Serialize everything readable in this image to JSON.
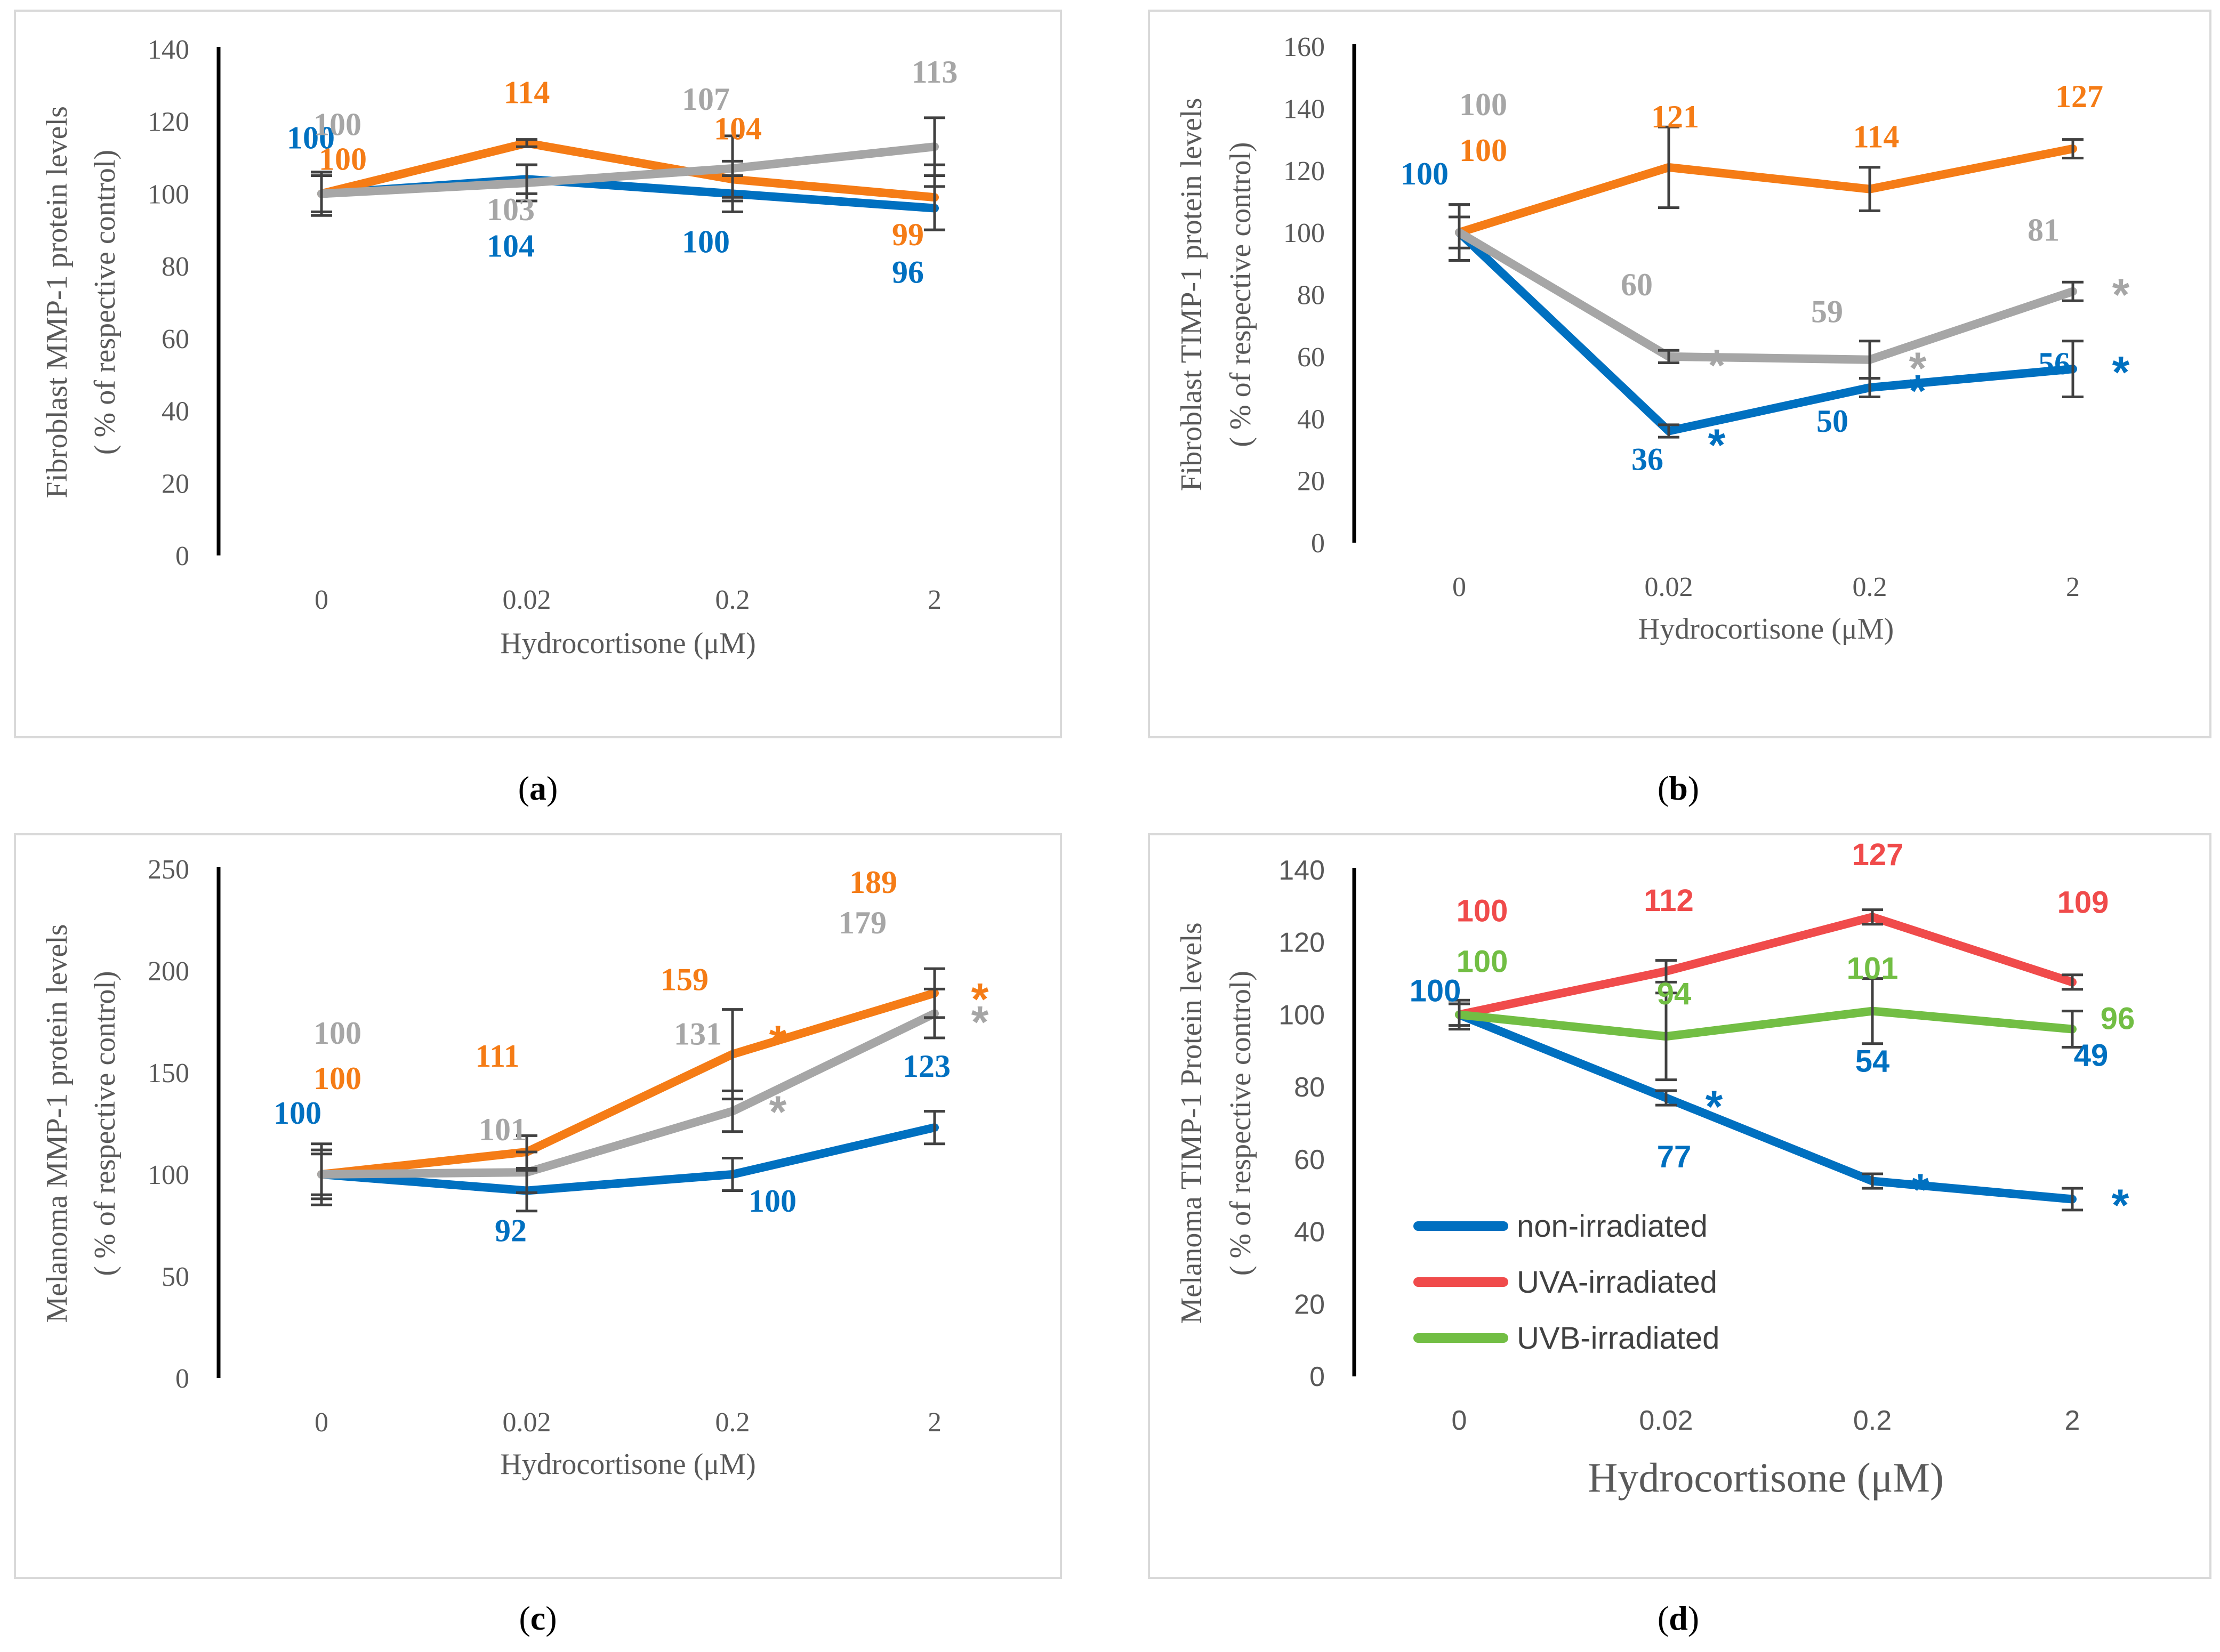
{
  "colors": {
    "blue": "#0070C0",
    "orange": "#F57C16",
    "gray": "#A6A6A6",
    "red": "#F04B4B",
    "green": "#72BE44"
  },
  "chart_data": [
    {
      "type": "line",
      "caption_letter": "a",
      "ylabel_1": "Fibroblast MMP-1 protein levels",
      "ylabel_2": "( % of respective control)",
      "xlabel": "Hydrocortisone (μM)",
      "categories": [
        "0",
        "0.02",
        "0.2",
        "2"
      ],
      "ylim": [
        0,
        140
      ],
      "yticks": [
        0,
        20,
        40,
        60,
        80,
        100,
        120,
        140
      ],
      "series": [
        {
          "name": "non-irradiated",
          "color": "#0070C0",
          "values": [
            100,
            104,
            100,
            96
          ],
          "errors": [
            6,
            4,
            5,
            6
          ],
          "labels": [
            "100",
            "104",
            "100",
            "96"
          ],
          "stars": [
            false,
            false,
            false,
            false
          ]
        },
        {
          "name": "UVA-irradiated",
          "color": "#F57C16",
          "values": [
            100,
            114,
            104,
            99
          ],
          "errors": [
            5,
            1,
            5,
            9
          ],
          "labels": [
            "100",
            "114",
            "104",
            "99"
          ],
          "stars": [
            false,
            false,
            false,
            false
          ]
        },
        {
          "name": "UVB-irradiated",
          "color": "#A6A6A6",
          "values": [
            100,
            103,
            107,
            113
          ],
          "errors": [
            6,
            5,
            9,
            8
          ],
          "labels": [
            "100",
            "103",
            "107",
            "113"
          ],
          "stars": [
            false,
            false,
            false,
            false
          ]
        }
      ]
    },
    {
      "type": "line",
      "caption_letter": "b",
      "ylabel_1": "Fibroblast TIMP-1 protein levels",
      "ylabel_2": "( % of respective control)",
      "xlabel": "Hydrocortisone (μM)",
      "categories": [
        "0",
        "0.02",
        "0.2",
        "2"
      ],
      "ylim": [
        0,
        160
      ],
      "yticks": [
        0,
        20,
        40,
        60,
        80,
        100,
        120,
        140,
        160
      ],
      "series": [
        {
          "name": "non-irradiated",
          "color": "#0070C0",
          "values": [
            100,
            36,
            50,
            56
          ],
          "errors": [
            9,
            2,
            3,
            9
          ],
          "labels": [
            "100",
            "36",
            "50",
            "56"
          ],
          "stars": [
            false,
            true,
            true,
            true
          ]
        },
        {
          "name": "UVA-irradiated",
          "color": "#F57C16",
          "values": [
            100,
            121,
            114,
            127
          ],
          "errors": [
            5,
            13,
            7,
            3
          ],
          "labels": [
            "100",
            "121",
            "114",
            "127"
          ],
          "stars": [
            false,
            false,
            false,
            false
          ]
        },
        {
          "name": "UVB-irradiated",
          "color": "#A6A6A6",
          "values": [
            100,
            60,
            59,
            81
          ],
          "errors": [
            9,
            2,
            6,
            3
          ],
          "labels": [
            "100",
            "60",
            "59",
            "81"
          ],
          "stars": [
            false,
            true,
            true,
            true
          ]
        }
      ]
    },
    {
      "type": "line",
      "caption_letter": "c",
      "ylabel_1": "Melanoma MMP-1 protein levels",
      "ylabel_2": "( % of respective control)",
      "xlabel": "Hydrocortisone (μM)",
      "categories": [
        "0",
        "0.02",
        "0.2",
        "2"
      ],
      "ylim": [
        0,
        250
      ],
      "yticks": [
        0,
        50,
        100,
        150,
        200,
        250
      ],
      "series": [
        {
          "name": "non-irradiated",
          "color": "#0070C0",
          "values": [
            100,
            92,
            100,
            123
          ],
          "errors": [
            15,
            10,
            8,
            8
          ],
          "labels": [
            "100",
            "92",
            "100",
            "123"
          ],
          "stars": [
            false,
            false,
            false,
            false
          ]
        },
        {
          "name": "UVA-irradiated",
          "color": "#F57C16",
          "values": [
            100,
            111,
            159,
            189
          ],
          "errors": [
            10,
            8,
            22,
            12
          ],
          "labels": [
            "100",
            "111",
            "159",
            "189"
          ],
          "stars": [
            false,
            false,
            true,
            true
          ]
        },
        {
          "name": "UVB-irradiated",
          "color": "#A6A6A6",
          "values": [
            100,
            101,
            131,
            179
          ],
          "errors": [
            12,
            10,
            10,
            12
          ],
          "labels": [
            "100",
            "101",
            "131",
            "179"
          ],
          "stars": [
            false,
            false,
            true,
            true
          ]
        }
      ]
    },
    {
      "type": "line",
      "caption_letter": "d",
      "ylabel_1": "Melanoma TIMP-1 Protein levels",
      "ylabel_2": "( % of respective control)",
      "xlabel": "Hydrocortisone (μM)",
      "categories": [
        "0",
        "0.02",
        "0.2",
        "2"
      ],
      "ylim": [
        0,
        140
      ],
      "yticks": [
        0,
        20,
        40,
        60,
        80,
        100,
        120,
        140
      ],
      "legend": "bottom-left",
      "series": [
        {
          "name": "non-irradiated",
          "color": "#0070C0",
          "values": [
            100,
            77,
            54,
            49
          ],
          "errors": [
            3,
            2,
            2,
            3
          ],
          "labels": [
            "100",
            "77",
            "54",
            "49"
          ],
          "stars": [
            false,
            true,
            true,
            true
          ]
        },
        {
          "name": "UVA-irradiated",
          "color": "#F04B4B",
          "values": [
            100,
            112,
            127,
            109
          ],
          "errors": [
            3,
            3,
            2,
            2
          ],
          "labels": [
            "100",
            "112",
            "127",
            "109"
          ],
          "stars": [
            false,
            false,
            false,
            false
          ]
        },
        {
          "name": "UVB-irradiated",
          "color": "#72BE44",
          "values": [
            100,
            94,
            101,
            96
          ],
          "errors": [
            4,
            12,
            9,
            5
          ],
          "labels": [
            "100",
            "94",
            "101",
            "96"
          ],
          "stars": [
            false,
            false,
            false,
            false
          ]
        }
      ]
    }
  ]
}
